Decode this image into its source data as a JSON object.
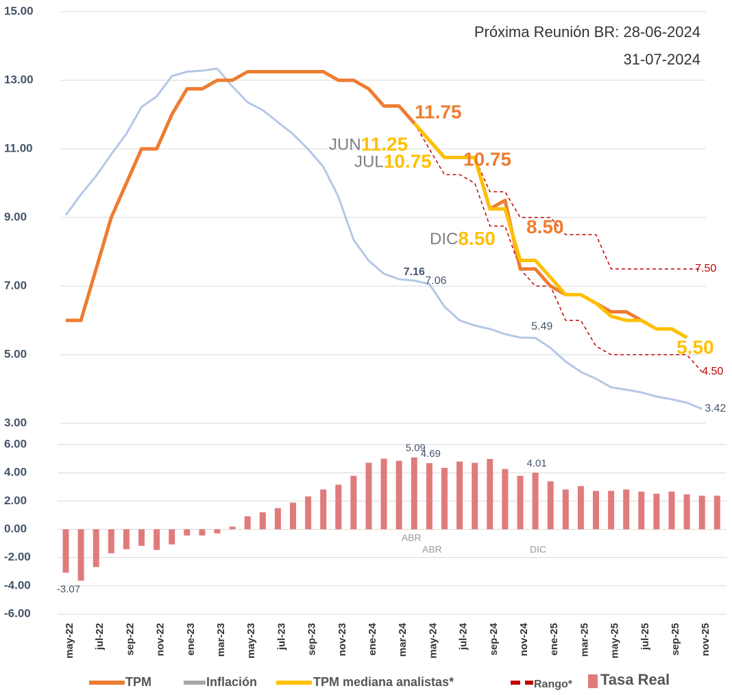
{
  "chart_data": [
    {
      "type": "line",
      "notes": [
        "Próxima Reunión BR: 28-06-2024",
        "31-07-2024"
      ],
      "ylim": [
        3,
        15
      ],
      "yticks": [
        {
          "value": 3,
          "label": "3.00"
        },
        {
          "value": 5,
          "label": "5.00"
        },
        {
          "value": 7,
          "label": "7.00"
        },
        {
          "value": 9,
          "label": "9.00"
        },
        {
          "value": 11,
          "label": "11.00"
        },
        {
          "value": 13,
          "label": "13.00"
        },
        {
          "value": 15,
          "label": "15.00"
        }
      ],
      "grid": true,
      "series": [
        {
          "name": "TPM",
          "color": "#ed7d31",
          "values": [
            6,
            6,
            7.5,
            9,
            10,
            11,
            11,
            12,
            12.75,
            12.75,
            13,
            13,
            13.25,
            13.25,
            13.25,
            13.25,
            13.25,
            13.25,
            13,
            13,
            12.75,
            12.25,
            12.25,
            11.75,
            11.25,
            10.75,
            10.75,
            10.75,
            9.25,
            9.5,
            7.5,
            7.5,
            7,
            6.75,
            6.75,
            6.5,
            6.25,
            6.25,
            6,
            5.75,
            5.75,
            5.5,
            null,
            null
          ]
        },
        {
          "name": "Inflación",
          "color": "#b4c7e7",
          "values": [
            9.07,
            9.67,
            10.21,
            10.84,
            11.44,
            12.22,
            12.53,
            13.12,
            13.25,
            13.28,
            13.34,
            12.82,
            12.36,
            12.13,
            11.78,
            11.43,
            10.99,
            10.48,
            9.6,
            8.35,
            7.74,
            7.36,
            7.2,
            7.16,
            7.06,
            6.4,
            6,
            5.85,
            5.75,
            5.6,
            5.5,
            5.49,
            5.2,
            4.8,
            4.5,
            4.3,
            4.05,
            3.98,
            3.9,
            3.78,
            3.7,
            3.6,
            3.42,
            null
          ],
          "value_labels": [
            null,
            null,
            null,
            null,
            null,
            null,
            null,
            null,
            null,
            null,
            null,
            null,
            null,
            null,
            null,
            null,
            null,
            null,
            null,
            null,
            null,
            null,
            null,
            "7.16",
            "7.06",
            null,
            null,
            null,
            null,
            null,
            null,
            "5.49",
            null,
            null,
            null,
            null,
            null,
            null,
            null,
            null,
            null,
            null,
            "3.42",
            null
          ]
        },
        {
          "name": "TPM mediana analistas*",
          "color": "#ffc000",
          "values": [
            null,
            null,
            null,
            null,
            null,
            null,
            null,
            null,
            null,
            null,
            null,
            null,
            null,
            null,
            null,
            null,
            null,
            null,
            null,
            null,
            null,
            null,
            null,
            11.75,
            11.25,
            10.75,
            10.75,
            10.75,
            9.25,
            9.25,
            7.75,
            7.75,
            7.25,
            6.75,
            6.75,
            6.5,
            6.12,
            6,
            6,
            5.75,
            5.75,
            5.5,
            null,
            null
          ],
          "value_labels": [
            null,
            null,
            null,
            null,
            null,
            null,
            null,
            null,
            null,
            null,
            null,
            null,
            null,
            null,
            null,
            null,
            null,
            null,
            null,
            null,
            null,
            null,
            null,
            null,
            null,
            null,
            null,
            null,
            null,
            null,
            null,
            null,
            null,
            null,
            null,
            null,
            null,
            null,
            null,
            null,
            null,
            "5.50",
            null,
            null
          ]
        }
      ],
      "range": {
        "name": "Rango*",
        "color": "#c00000",
        "upper": [
          null,
          null,
          null,
          null,
          null,
          null,
          null,
          null,
          null,
          null,
          null,
          null,
          null,
          null,
          null,
          null,
          null,
          null,
          null,
          null,
          null,
          null,
          null,
          11.75,
          11.25,
          10.75,
          10.75,
          10.75,
          9.75,
          9.75,
          9,
          9,
          9,
          8.5,
          8.5,
          8.5,
          7.5,
          7.5,
          7.5,
          7.5,
          7.5,
          7.5,
          7.5,
          null
        ],
        "lower": [
          null,
          null,
          null,
          null,
          null,
          null,
          null,
          null,
          null,
          null,
          null,
          null,
          null,
          null,
          null,
          null,
          null,
          null,
          null,
          null,
          null,
          null,
          null,
          11.75,
          11,
          10.25,
          10.25,
          10,
          8.75,
          8.75,
          7.5,
          7,
          7,
          6,
          6,
          5.25,
          5,
          5,
          5,
          5,
          5,
          5,
          4.5,
          null
        ],
        "upper_labels": [
          null,
          null,
          null,
          null,
          null,
          null,
          null,
          null,
          null,
          null,
          null,
          null,
          null,
          null,
          null,
          null,
          null,
          null,
          null,
          null,
          null,
          null,
          null,
          null,
          null,
          null,
          null,
          null,
          null,
          null,
          null,
          null,
          null,
          null,
          null,
          null,
          null,
          null,
          null,
          null,
          null,
          null,
          "7.50",
          null
        ],
        "lower_labels": [
          null,
          null,
          null,
          null,
          null,
          null,
          null,
          null,
          null,
          null,
          null,
          null,
          null,
          null,
          null,
          null,
          null,
          null,
          null,
          null,
          null,
          null,
          null,
          null,
          null,
          null,
          null,
          null,
          null,
          null,
          null,
          null,
          null,
          null,
          null,
          null,
          null,
          null,
          null,
          null,
          null,
          null,
          "4.50",
          null
        ]
      },
      "annotations": [
        {
          "value": 11.75,
          "label": "11.75",
          "color": "#ed7d31"
        },
        {
          "text": "JUN",
          "value": 11.25,
          "label": "11.25",
          "color": "#ffc000"
        },
        {
          "text": "JUL",
          "value": 10.75,
          "label": "10.75",
          "color": "#ffc000"
        },
        {
          "value": 10.75,
          "label": "10.75",
          "color": "#ed7d31"
        },
        {
          "text": "DIC",
          "value": 8.5,
          "label": "8.50",
          "color": "#ffc000"
        },
        {
          "value": 8.5,
          "label": "8.50",
          "color": "#ed7d31"
        }
      ]
    },
    {
      "type": "bar",
      "categories": [
        "may-22",
        null,
        "jul-22",
        null,
        "sep-22",
        null,
        "nov-22",
        null,
        "ene-23",
        null,
        "mar-23",
        null,
        "may-23",
        null,
        "jul-23",
        null,
        "sep-23",
        null,
        "nov-23",
        null,
        "ene-24",
        null,
        "mar-24",
        null,
        "may-24",
        null,
        "jul-24",
        null,
        "sep-24",
        null,
        "nov-24",
        null,
        "ene-25",
        null,
        "mar-25",
        null,
        "may-25",
        null,
        "jul-25",
        null,
        "sep-25",
        null,
        "nov-25",
        null
      ],
      "ylim": [
        -6,
        6
      ],
      "yticks": [
        {
          "value": -6,
          "label": "-6.00"
        },
        {
          "value": -4,
          "label": "-4.00"
        },
        {
          "value": -2,
          "label": "-2.00"
        },
        {
          "value": 0,
          "label": "0.00"
        },
        {
          "value": 2,
          "label": "2.00"
        },
        {
          "value": 4,
          "label": "4.00"
        },
        {
          "value": 6,
          "label": "6.00"
        }
      ],
      "grid": true,
      "series": [
        {
          "name": "Tasa Real",
          "color": "#e07b7b",
          "values": [
            -3.07,
            -3.64,
            -2.67,
            -1.7,
            -1.41,
            -1.17,
            -1.46,
            -1.07,
            -0.44,
            -0.44,
            -0.29,
            0.19,
            0.92,
            1.21,
            1.5,
            1.89,
            2.33,
            2.82,
            3.16,
            3.79,
            4.71,
            5,
            4.85,
            5.09,
            4.69,
            4.35,
            4.8,
            4.71,
            4.98,
            4.27,
            3.79,
            4.01,
            3.4,
            2.82,
            3.06,
            2.72,
            2.72,
            2.82,
            2.67,
            2.52,
            2.67,
            2.48,
            2.38,
            2.38
          ],
          "value_labels": [
            "-3.07",
            null,
            null,
            null,
            null,
            null,
            null,
            null,
            null,
            null,
            null,
            null,
            null,
            null,
            null,
            null,
            null,
            null,
            null,
            null,
            null,
            null,
            null,
            "5.09",
            "4.69",
            null,
            null,
            null,
            null,
            null,
            null,
            "4.01",
            null,
            null,
            null,
            null,
            null,
            null,
            null,
            null,
            null,
            null,
            null,
            null
          ],
          "tags": [
            null,
            null,
            null,
            null,
            null,
            null,
            null,
            null,
            null,
            null,
            null,
            null,
            null,
            null,
            null,
            null,
            null,
            null,
            null,
            null,
            null,
            null,
            null,
            "ABR",
            "ABR",
            null,
            null,
            null,
            null,
            null,
            null,
            "DIC",
            null,
            null,
            null,
            null,
            null,
            null,
            null,
            null,
            null,
            null,
            null,
            null
          ]
        }
      ]
    }
  ]
}
